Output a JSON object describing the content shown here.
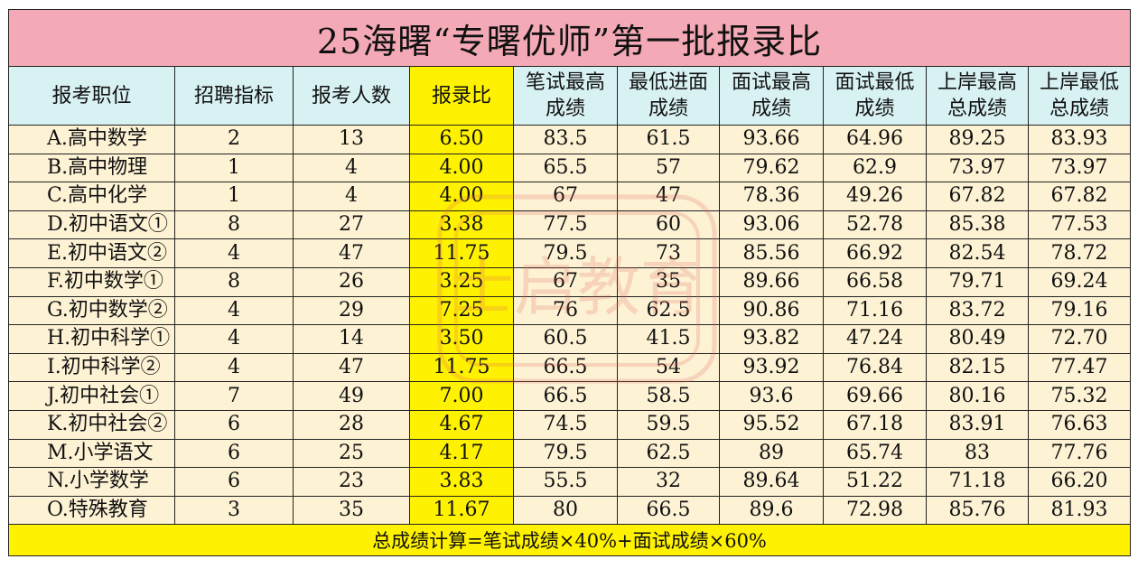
{
  "title": "25海曙“专曙优师”第一批报录比",
  "headers": [
    "报考职位",
    "招聘指标",
    "报考人数",
    "报录比",
    "笔试最高\n成绩",
    "最低进面\n成绩",
    "面试最高\n成绩",
    "面试最低\n成绩",
    "上岸最高\n总成绩",
    "上岸最低\n总成绩"
  ],
  "header_lines": [
    [
      "报考职位",
      ""
    ],
    [
      "招聘指标",
      ""
    ],
    [
      "报考人数",
      ""
    ],
    [
      "报录比",
      ""
    ],
    [
      "笔试最高",
      "成绩"
    ],
    [
      "最低进面",
      "成绩"
    ],
    [
      "面试最高",
      "成绩"
    ],
    [
      "面试最低",
      "成绩"
    ],
    [
      "上岸最高",
      "总成绩"
    ],
    [
      "上岸最低",
      "总成绩"
    ]
  ],
  "rows": [
    [
      "A.高中数学",
      "2",
      "13",
      "6.50",
      "83.5",
      "61.5",
      "93.66",
      "64.96",
      "89.25",
      "83.93"
    ],
    [
      "B.高中物理",
      "1",
      "4",
      "4.00",
      "65.5",
      "57",
      "79.62",
      "62.9",
      "73.97",
      "73.97"
    ],
    [
      "C.高中化学",
      "1",
      "4",
      "4.00",
      "67",
      "47",
      "78.36",
      "49.26",
      "67.82",
      "67.82"
    ],
    [
      "D.初中语文①",
      "8",
      "27",
      "3.38",
      "77.5",
      "60",
      "93.06",
      "52.78",
      "85.38",
      "77.53"
    ],
    [
      "E.初中语文②",
      "4",
      "47",
      "11.75",
      "79.5",
      "73",
      "85.56",
      "66.92",
      "82.54",
      "78.72"
    ],
    [
      "F.初中数学①",
      "8",
      "26",
      "3.25",
      "67",
      "35",
      "89.66",
      "66.58",
      "79.71",
      "69.24"
    ],
    [
      "G.初中数学②",
      "4",
      "29",
      "7.25",
      "76",
      "62.5",
      "90.86",
      "71.16",
      "83.72",
      "79.16"
    ],
    [
      "H.初中科学①",
      "4",
      "14",
      "3.50",
      "60.5",
      "41.5",
      "93.82",
      "47.24",
      "80.49",
      "72.70"
    ],
    [
      "I.初中科学②",
      "4",
      "47",
      "11.75",
      "66.5",
      "54",
      "93.92",
      "76.84",
      "82.15",
      "77.47"
    ],
    [
      "J.初中社会①",
      "7",
      "49",
      "7.00",
      "66.5",
      "58.5",
      "93.6",
      "69.66",
      "80.16",
      "75.32"
    ],
    [
      "K.初中社会②",
      "6",
      "28",
      "4.67",
      "74.5",
      "59.5",
      "95.52",
      "67.18",
      "83.91",
      "76.63"
    ],
    [
      "M.小学语文",
      "6",
      "25",
      "4.17",
      "79.5",
      "62.5",
      "89",
      "65.74",
      "83",
      "77.76"
    ],
    [
      "N.小学数学",
      "6",
      "23",
      "3.83",
      "55.5",
      "32",
      "89.64",
      "51.22",
      "71.18",
      "66.20"
    ],
    [
      "O.特殊教育",
      "3",
      "35",
      "11.67",
      "80",
      "66.5",
      "89.6",
      "72.98",
      "85.76",
      "81.93"
    ]
  ],
  "footer": "总成绩计算=笔试成绩×40%+面试成绩×60%",
  "watermark": "士启教育",
  "colors": {
    "title_bg": "#f3a9b6",
    "header_bg": "#d8f1f3",
    "row_bg": "#fdf2d4",
    "highlight": "#fff200",
    "watermark": "#e2675f"
  }
}
